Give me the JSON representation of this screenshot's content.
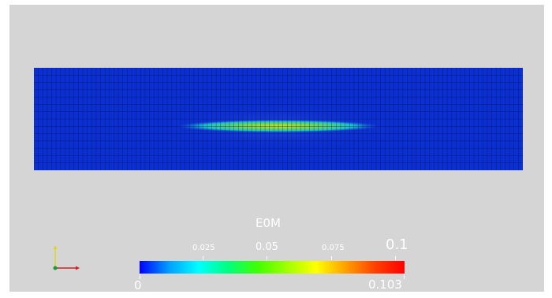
{
  "colorbar": {
    "title": "E0M",
    "tick_labels": [
      "0.025",
      "0.05",
      "0.075",
      "0.1"
    ],
    "range_min_label": "0",
    "range_max_label": "0.103",
    "colors": [
      "#0000ff",
      "#00a0ff",
      "#00ffff",
      "#00ff80",
      "#40ff00",
      "#a0ff00",
      "#ffff00",
      "#ffa000",
      "#ff4000",
      "#ff0000"
    ]
  },
  "mesh": {
    "background_color": "#0b2fd1",
    "hotspot_colors": [
      "#00c8e0",
      "#4cd97a",
      "#a8e43a",
      "#c8e020"
    ],
    "grid_color": "#04144f"
  },
  "axes": {
    "x_color": "#d22020",
    "y_color": "#d8d82a",
    "z_color": "#1a9a3a"
  }
}
